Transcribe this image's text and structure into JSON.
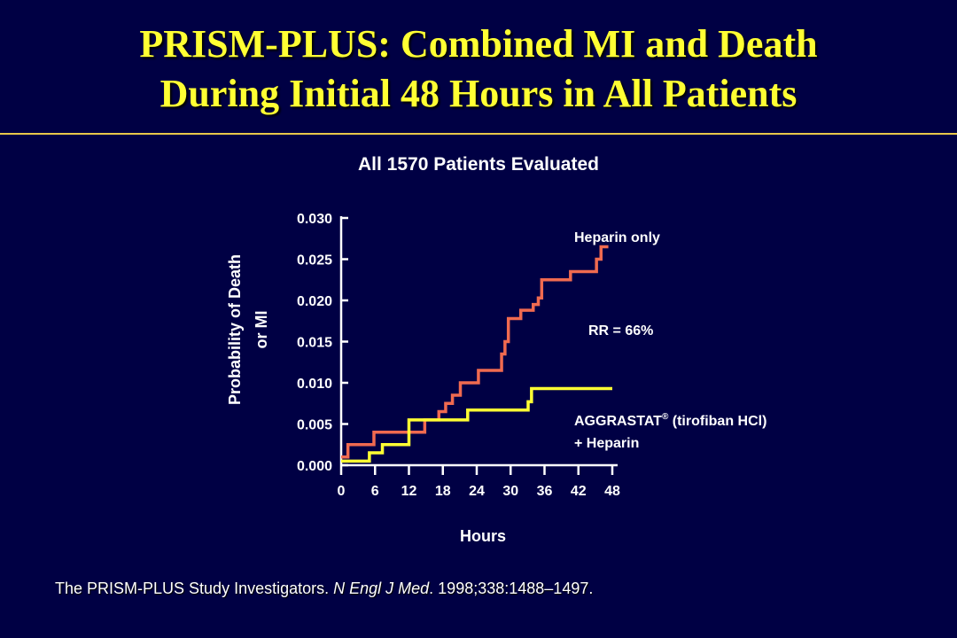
{
  "slide": {
    "title_line1": "PRISM-PLUS: Combined MI and Death",
    "title_line2": "During Initial 48 Hours in All Patients",
    "subtitle": "All 1570 Patients Evaluated",
    "citation_part1": "The PRISM-PLUS Study Investigators. ",
    "citation_journal": "N Engl J Med",
    "citation_part2": ". 1998;338:1488–1497."
  },
  "colors": {
    "background": "#000044",
    "title": "#ffff33",
    "heparin_series": "#f06a50",
    "aggrastat_series": "#ffff33",
    "axis": "#ffffff"
  },
  "chart_data": {
    "type": "line",
    "subtype": "step",
    "title": "All 1570 Patients Evaluated",
    "xlabel": "Hours",
    "ylabel_line1": "Probability of Death",
    "ylabel_line2": "or MI",
    "xlim": [
      0,
      48
    ],
    "ylim": [
      0,
      0.03
    ],
    "x_ticks": [
      "0",
      "6",
      "12",
      "18",
      "24",
      "30",
      "36",
      "42",
      "48"
    ],
    "y_ticks": [
      "0.000",
      "0.005",
      "0.010",
      "0.015",
      "0.020",
      "0.025",
      "0.030"
    ],
    "series": [
      {
        "name": "Heparin only",
        "color": "#f06a50",
        "x": [
          0,
          1.2,
          5.8,
          14.8,
          17.3,
          18.5,
          19.7,
          21.1,
          24.3,
          28.4,
          29.0,
          29.6,
          31.8,
          34.0,
          34.9,
          35.5,
          40.6,
          45.2,
          46.0,
          47.3
        ],
        "y": [
          0.001,
          0.0025,
          0.004,
          0.0055,
          0.0065,
          0.0075,
          0.0085,
          0.01,
          0.0115,
          0.0135,
          0.015,
          0.0178,
          0.0188,
          0.0195,
          0.0203,
          0.0225,
          0.0235,
          0.025,
          0.0265,
          0.0265
        ]
      },
      {
        "name": "AGGRASTAT® (tirofiban HCl) + Heparin",
        "color": "#ffff33",
        "x": [
          0,
          5.0,
          7.3,
          12.0,
          22.4,
          33.1,
          33.7,
          48
        ],
        "y": [
          0.0005,
          0.0015,
          0.0025,
          0.0055,
          0.0067,
          0.0077,
          0.0093,
          0.0093
        ]
      }
    ],
    "annotations": {
      "heparin_label": "Heparin only",
      "rr_label": "RR = 66%",
      "aggrastat_label_prefix": "AGGRASTAT",
      "aggrastat_label_reg": "®",
      "aggrastat_label_suffix": " (tirofiban HCl)",
      "aggrastat_label_line2": "+ Heparin"
    }
  }
}
